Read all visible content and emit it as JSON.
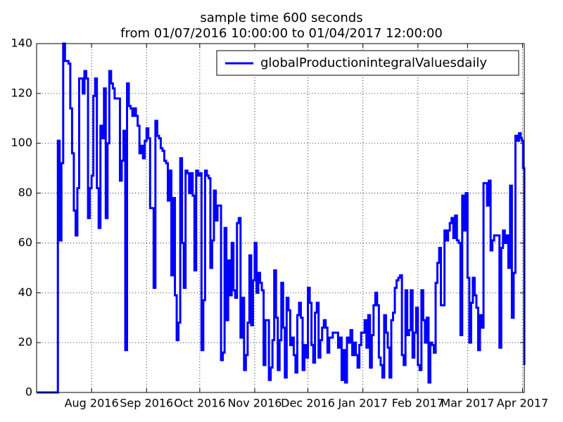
{
  "chart_data": {
    "type": "step",
    "title": "sample time 600 seconds",
    "subtitle": "from 01/07/2016 10:00:00 to 01/04/2017 12:00:00",
    "x": [
      0,
      12,
      13,
      14,
      15,
      16,
      18,
      19,
      20,
      21,
      22,
      23,
      24,
      26,
      27,
      28,
      29,
      30,
      31,
      32,
      33,
      34,
      35,
      36,
      37,
      38,
      39,
      40,
      41,
      42,
      43,
      44,
      46,
      47,
      48,
      49,
      50,
      51,
      52,
      53,
      54,
      55,
      56,
      57,
      58,
      59,
      60,
      61,
      62,
      63,
      64,
      66,
      67,
      68,
      69,
      70,
      71,
      72,
      73,
      74,
      75,
      76,
      77,
      78,
      79,
      80,
      81,
      82,
      83,
      84,
      85,
      86,
      87,
      88,
      89,
      90,
      91,
      92,
      93,
      94,
      95,
      96,
      97,
      98,
      99,
      100,
      101,
      102,
      103,
      104,
      105,
      106,
      107,
      108,
      109,
      110,
      111,
      112,
      113,
      114,
      115,
      116,
      117,
      118,
      119,
      120,
      121,
      122,
      123,
      124,
      125,
      126,
      127,
      128,
      129,
      130,
      131,
      132,
      133,
      134,
      135,
      136,
      137,
      138,
      139,
      140,
      141,
      142,
      143,
      144,
      145,
      146,
      147,
      148,
      149,
      150,
      151,
      152,
      153,
      154,
      155,
      156,
      157,
      158,
      159,
      160,
      161,
      162,
      163,
      164,
      165,
      166,
      167,
      169,
      170,
      171,
      172,
      173,
      174,
      175,
      176,
      177,
      178,
      179,
      180,
      181,
      182,
      183,
      184,
      185,
      186,
      187,
      188,
      189,
      190,
      191,
      192,
      193,
      194,
      195,
      196,
      197,
      198,
      199,
      200,
      201,
      202,
      203,
      204,
      205,
      206,
      207,
      208,
      209,
      210,
      211,
      212,
      213,
      214,
      215,
      216,
      217,
      218,
      219,
      220,
      221,
      222,
      223,
      224,
      225,
      226,
      227,
      228,
      229,
      230,
      231,
      232,
      233,
      234,
      235,
      236,
      237,
      238,
      239,
      240,
      241,
      242,
      243,
      244,
      245,
      246,
      247,
      248,
      249,
      250,
      251,
      252,
      254,
      255,
      256,
      257,
      258,
      260,
      261,
      262,
      263,
      264,
      265,
      266,
      267,
      268,
      269,
      270,
      271,
      272,
      273,
      273.6,
      274.3,
      275
    ],
    "series": [
      {
        "name": "globalProductionintegralValuesdaily",
        "color": "#0000ff",
        "values": [
          0,
          101,
          61,
          92,
          140,
          133,
          132,
          114,
          96,
          73,
          63,
          82,
          126,
          120,
          129,
          126,
          70,
          82,
          87,
          119,
          126,
          82,
          66,
          107,
          102,
          122,
          70,
          100,
          129,
          124,
          122,
          118,
          118,
          85,
          93,
          105,
          17,
          124,
          115,
          114,
          111,
          114,
          111,
          107,
          96,
          99,
          94,
          101,
          106,
          102,
          74,
          42,
          109,
          103,
          102,
          98,
          97,
          93,
          92,
          77,
          89,
          47,
          78,
          39,
          21,
          28,
          94,
          60,
          42,
          89,
          88,
          80,
          88,
          79,
          49,
          89,
          87,
          88,
          17,
          37,
          89,
          87,
          86,
          50,
          61,
          81,
          69,
          75,
          75,
          13,
          16,
          66,
          29,
          53,
          39,
          60,
          41,
          38,
          68,
          70,
          22,
          38,
          9,
          15,
          28,
          55,
          27,
          45,
          60,
          40,
          48,
          44,
          41,
          11,
          29,
          29,
          5,
          10,
          21,
          49,
          30,
          9,
          21,
          44,
          26,
          6,
          38,
          33,
          19,
          22,
          15,
          8,
          31,
          36,
          30,
          9,
          19,
          14,
          42,
          36,
          19,
          12,
          32,
          36,
          14,
          21,
          26,
          29,
          26,
          16,
          22,
          22,
          24,
          24,
          18,
          22,
          5,
          17,
          4,
          22,
          20,
          25,
          15,
          20,
          15,
          10,
          19,
          24,
          24,
          29,
          18,
          31,
          10,
          23,
          35,
          40,
          35,
          14,
          11,
          6,
          31,
          24,
          18,
          6,
          29,
          32,
          42,
          45,
          46,
          47,
          15,
          11,
          41,
          23,
          25,
          41,
          14,
          24,
          34,
          11,
          9,
          41,
          29,
          20,
          30,
          4,
          20,
          19,
          16,
          44,
          52,
          58,
          35,
          35,
          65,
          61,
          65,
          68,
          70,
          62,
          71,
          61,
          60,
          23,
          79,
          65,
          80,
          46,
          20,
          36,
          46,
          39,
          34,
          17,
          31,
          26,
          84,
          75,
          85,
          57,
          61,
          63,
          63,
          18,
          58,
          65,
          60,
          63,
          50,
          83,
          30,
          48,
          103,
          101,
          104,
          102,
          101,
          90,
          11
        ]
      }
    ],
    "xlim": [
      0,
      275
    ],
    "xticks": [
      {
        "value": 31,
        "label": "Aug 2016"
      },
      {
        "value": 62,
        "label": "Sep 2016"
      },
      {
        "value": 92,
        "label": "Oct 2016"
      },
      {
        "value": 123,
        "label": "Nov 2016"
      },
      {
        "value": 153,
        "label": "Dec 2016"
      },
      {
        "value": 184,
        "label": "Jan 2017"
      },
      {
        "value": 215,
        "label": "Feb 2017"
      },
      {
        "value": 243,
        "label": "Mar 2017"
      },
      {
        "value": 274,
        "label": "Apr 2017"
      }
    ],
    "ylim": [
      0,
      140
    ],
    "yticks": [
      0,
      20,
      40,
      60,
      80,
      100,
      120,
      140
    ],
    "grid": true,
    "legend": "upper right"
  }
}
